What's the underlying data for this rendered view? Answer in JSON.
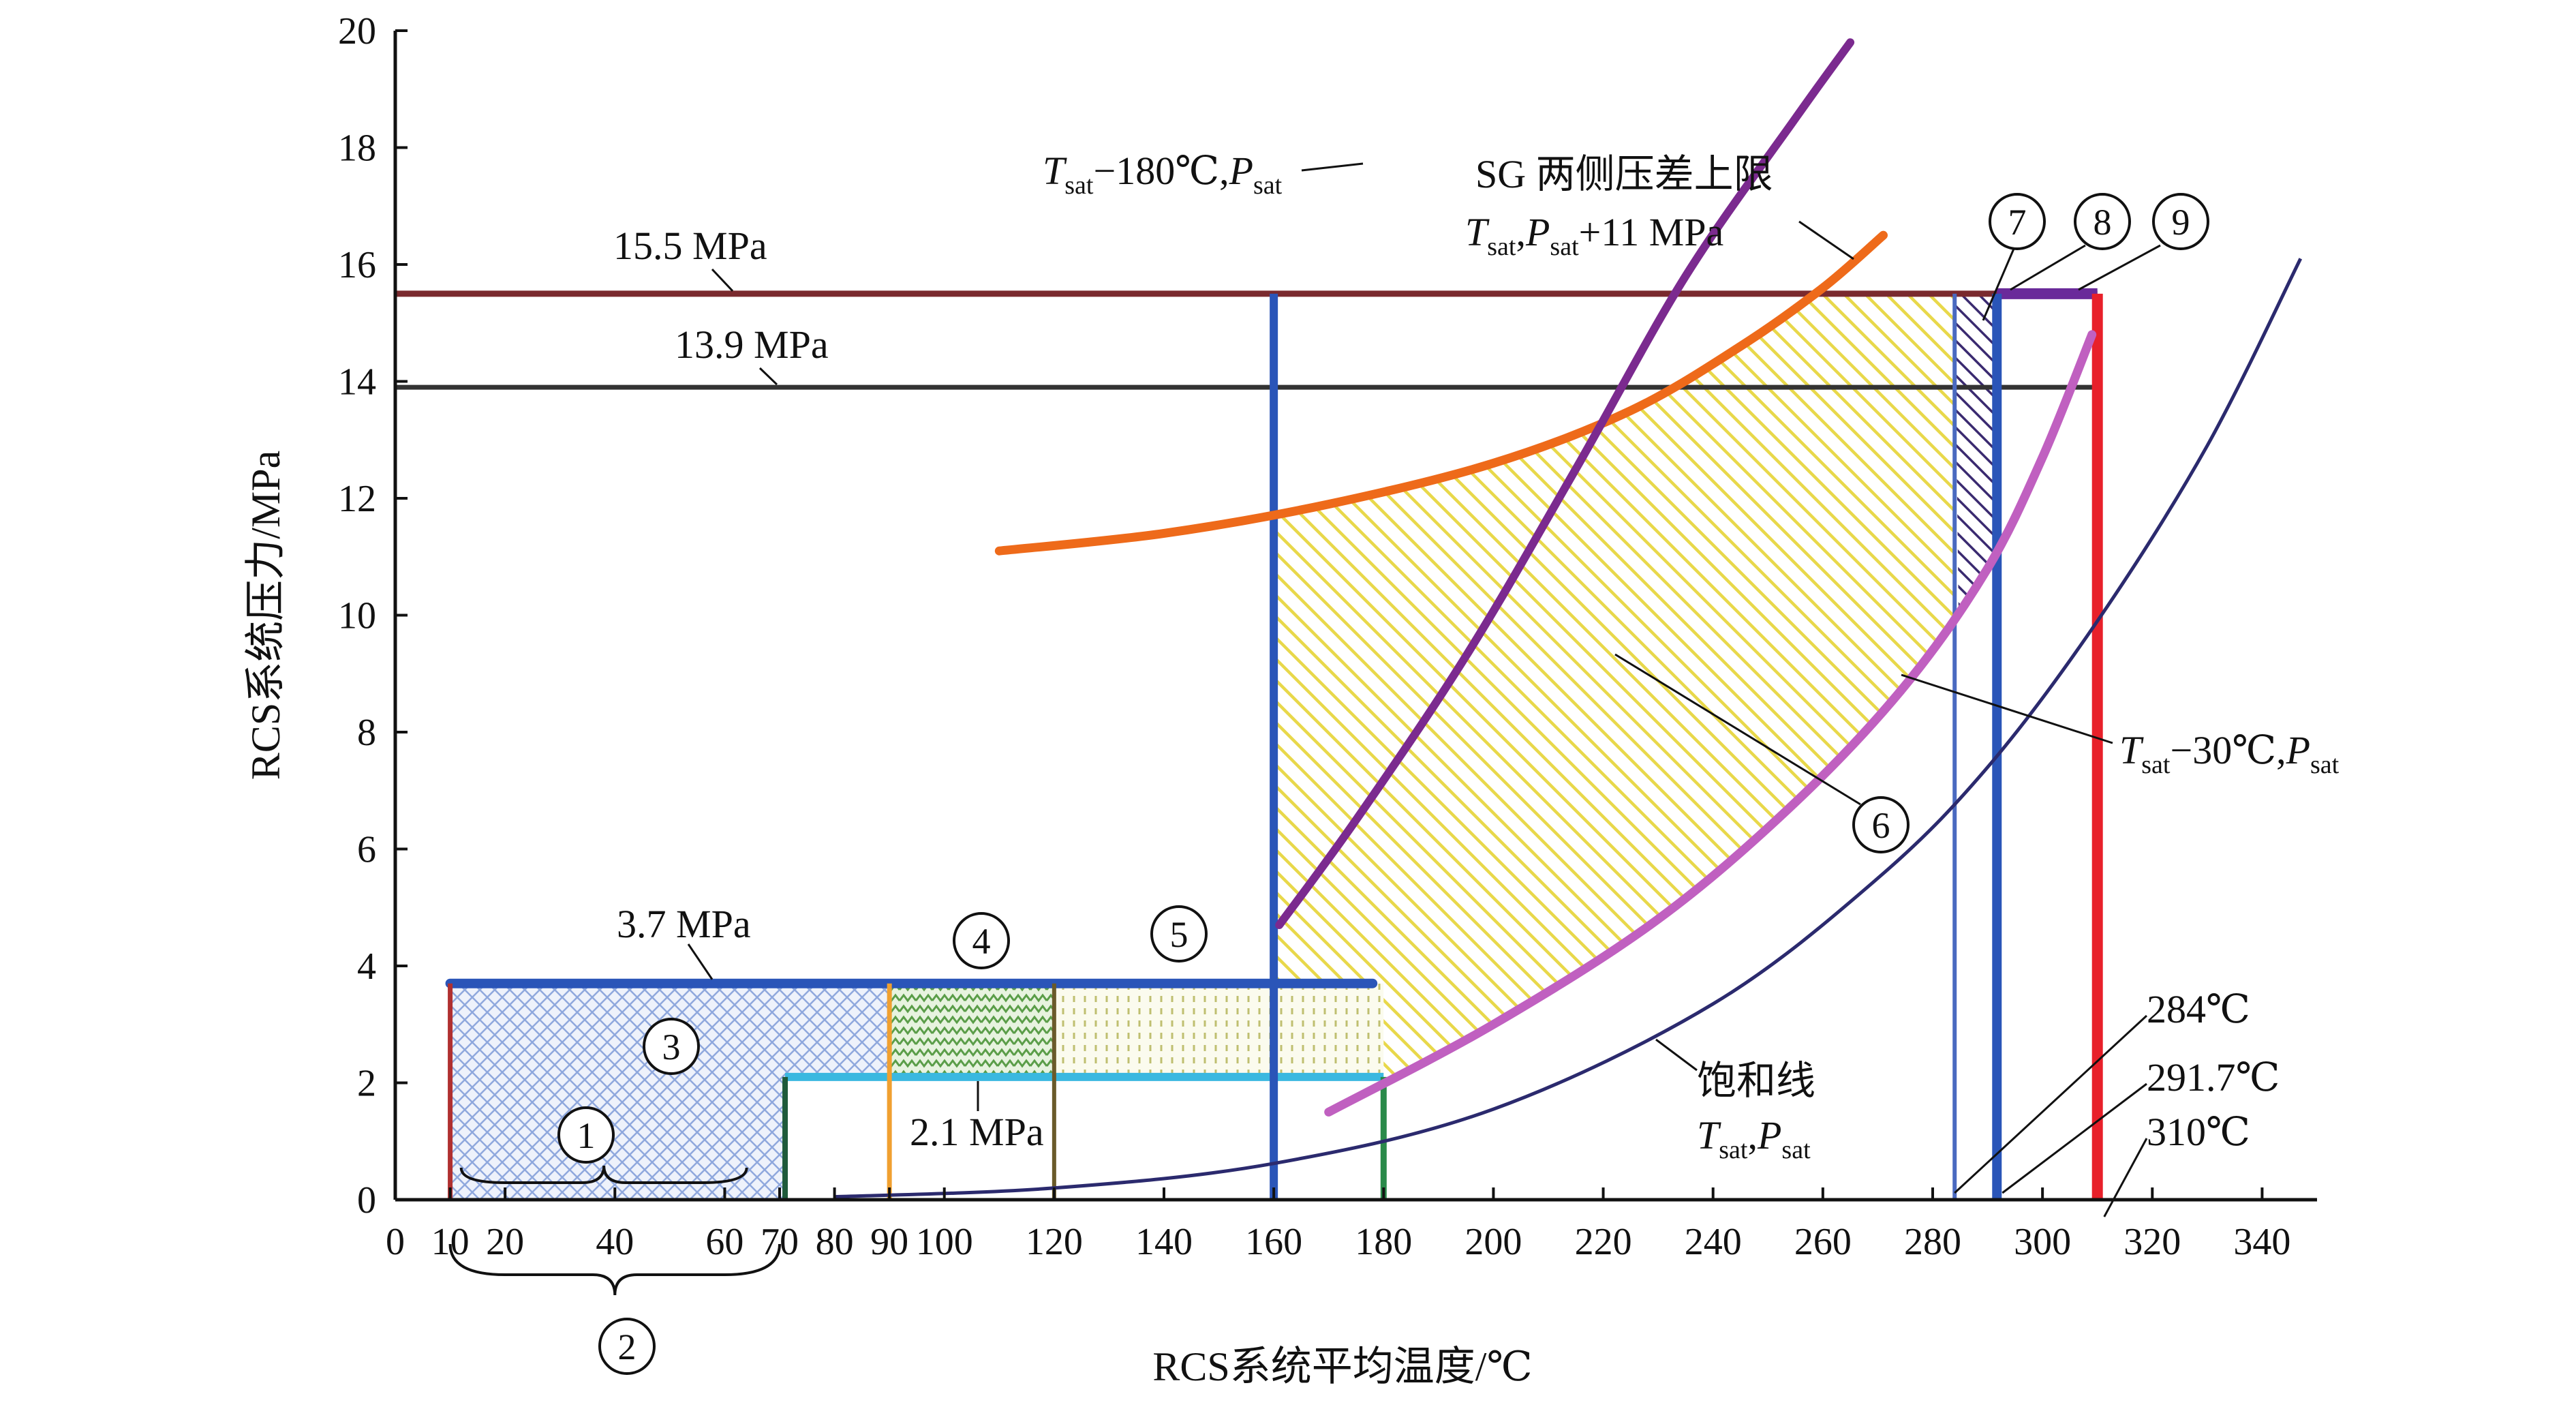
{
  "chart_data": {
    "type": "line",
    "xlabel": "RCS系统平均温度/℃",
    "ylabel": "RCS系统压力/MPa",
    "xlim": [
      0,
      350
    ],
    "ylim": [
      0,
      20
    ],
    "x_ticks": [
      0,
      10,
      20,
      40,
      60,
      70,
      80,
      90,
      100,
      120,
      140,
      160,
      180,
      200,
      220,
      240,
      260,
      280,
      300,
      320,
      340
    ],
    "x_tick_labels": [
      "0",
      "10",
      "20",
      "40",
      "60",
      "70",
      "80",
      "90",
      "100",
      "120",
      "140",
      "160",
      "180",
      "200",
      "220",
      "240",
      "260",
      "280",
      "300",
      "320",
      "340"
    ],
    "y_ticks": [
      0,
      2,
      4,
      6,
      8,
      10,
      12,
      14,
      16,
      18,
      20
    ],
    "y_tick_labels": [
      "0",
      "2",
      "4",
      "6",
      "8",
      "10",
      "12",
      "14",
      "16",
      "18",
      "20"
    ],
    "grid": false,
    "colors": {
      "tsat_minus_180": "#7b2a8f",
      "sg_dp_limit": "#ee6a1a",
      "line_15_5": "#7a2a2e",
      "line_13_9": "#333333",
      "tsat_minus_30": "#c060c0",
      "saturation": "#2b2a6e",
      "blue_bar": "#2a55b8",
      "red_bar": "#e8202a",
      "cyan_bar": "#3ab8e0",
      "region6_yellow": "#f0e070",
      "region3_blue": "#8fa8dd",
      "region4_green": "#6aa85a",
      "region5_yellow": "#d8d8a0"
    },
    "series": [
      {
        "key": "tsat_minus_180",
        "label_main": "T",
        "label_sub1": "sat",
        "label_mid": "−180℃,P",
        "label_sub2": "sat",
        "points": [
          [
            161,
            4.7
          ],
          [
            175,
            6.5
          ],
          [
            195,
            9.3
          ],
          [
            215,
            12.5
          ],
          [
            235,
            15.8
          ],
          [
            255,
            18.5
          ],
          [
            265,
            19.8
          ]
        ]
      },
      {
        "key": "sg_dp_limit",
        "label_title": "SG 两侧压差上限",
        "label_main": "T",
        "label_sub1": "sat",
        "label_mid": ",P",
        "label_sub2": "sat",
        "label_tail": "+11 MPa",
        "points": [
          [
            110,
            11.1
          ],
          [
            140,
            11.4
          ],
          [
            170,
            11.9
          ],
          [
            200,
            12.6
          ],
          [
            225,
            13.5
          ],
          [
            245,
            14.6
          ],
          [
            260,
            15.6
          ],
          [
            271,
            16.5
          ]
        ]
      },
      {
        "key": "tsat_minus_30",
        "label_main": "T",
        "label_sub1": "sat",
        "label_mid": "−30℃,P",
        "label_sub2": "sat",
        "points": [
          [
            170,
            1.5
          ],
          [
            200,
            3.0
          ],
          [
            230,
            4.8
          ],
          [
            255,
            6.8
          ],
          [
            275,
            8.8
          ],
          [
            290,
            10.8
          ],
          [
            300,
            12.7
          ],
          [
            309,
            14.8
          ]
        ]
      },
      {
        "key": "saturation",
        "label_title": "饱和线",
        "label_main": "T",
        "label_sub1": "sat",
        "label_mid": ",P",
        "label_sub2": "sat",
        "points": [
          [
            80,
            0.05
          ],
          [
            120,
            0.2
          ],
          [
            160,
            0.62
          ],
          [
            200,
            1.55
          ],
          [
            240,
            3.35
          ],
          [
            270,
            5.5
          ],
          [
            290,
            7.4
          ],
          [
            310,
            9.9
          ],
          [
            330,
            12.9
          ],
          [
            347,
            16.1
          ]
        ]
      }
    ],
    "pressure_limits": [
      {
        "label": "15.5 MPa",
        "value": 15.5
      },
      {
        "label": "13.9 MPa",
        "value": 13.9
      },
      {
        "label": "3.7 MPa",
        "value": 3.7
      },
      {
        "label": "2.1 MPa",
        "value": 2.1
      }
    ],
    "temperature_markers": [
      {
        "label": "284℃",
        "value": 284
      },
      {
        "label": "291.7℃",
        "value": 291.7
      },
      {
        "label": "310℃",
        "value": 310
      }
    ],
    "region_labels": [
      "1",
      "2",
      "3",
      "4",
      "5",
      "6",
      "7",
      "8",
      "9"
    ]
  }
}
